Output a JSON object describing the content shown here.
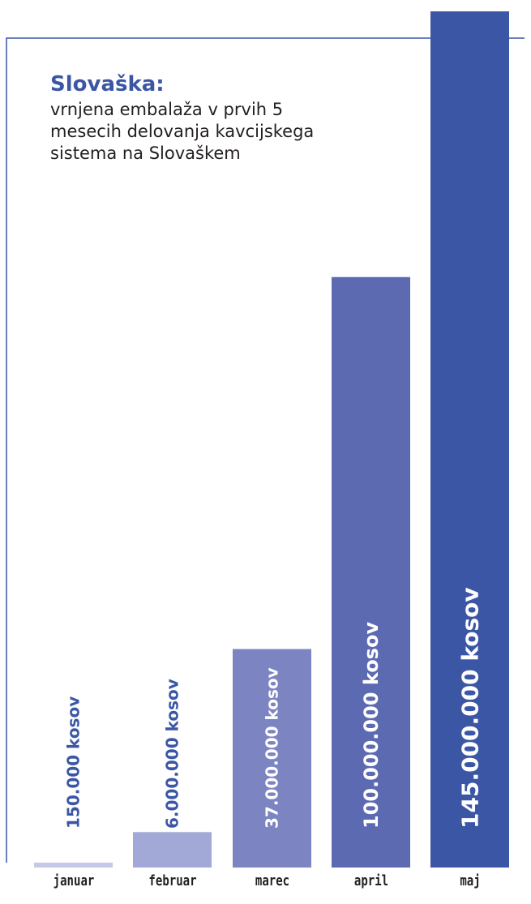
{
  "chart_data": {
    "type": "bar",
    "title": "Slovaška:",
    "subtitle": "vrnjena embalaža v prvih 5 mesecih delovanja kavcijskega sistema na Slovaškem",
    "xlabel": "",
    "ylabel": "",
    "categories": [
      "januar",
      "februar",
      "marec",
      "april",
      "maj"
    ],
    "values": [
      150000,
      6000000,
      37000000,
      100000000,
      145000000
    ],
    "value_labels": [
      "150.000 kosov",
      "6.000.000 kosov",
      "37.000.000 kosov",
      "100.000.000 kosov",
      "145.000.000 kosov"
    ],
    "bar_colors": [
      "#c4c9e6",
      "#a3a9d6",
      "#7c84c2",
      "#5c6ab1",
      "#3b56a5"
    ],
    "label_colors": [
      "#3b56a5",
      "#3b56a5",
      "#ffffff",
      "#ffffff",
      "#ffffff"
    ],
    "ylim": [
      0,
      145000000
    ],
    "grid": false,
    "legend": "none"
  },
  "colors": {
    "accent": "#3b56a5",
    "frame": "#3b56a5",
    "text": "#231f20"
  }
}
